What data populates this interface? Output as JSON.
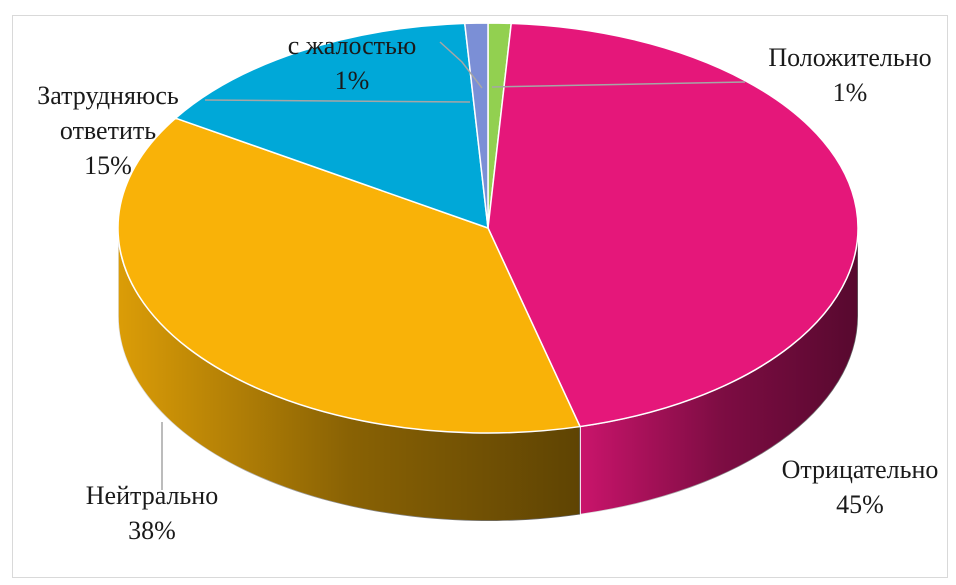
{
  "chart_data": {
    "type": "pie3d",
    "categories": [
      "Положительно",
      "Отрицательно",
      "Нейтрально",
      "Затрудняюсь ответить",
      "с жалостью"
    ],
    "values": [
      1,
      45,
      38,
      15,
      1
    ],
    "value_labels": [
      "1%",
      "45%",
      "38%",
      "15%",
      "1%"
    ],
    "colors": [
      "#92d050",
      "#e5177a",
      "#f9b208",
      "#00a8d8",
      "#7b8fd6"
    ]
  }
}
